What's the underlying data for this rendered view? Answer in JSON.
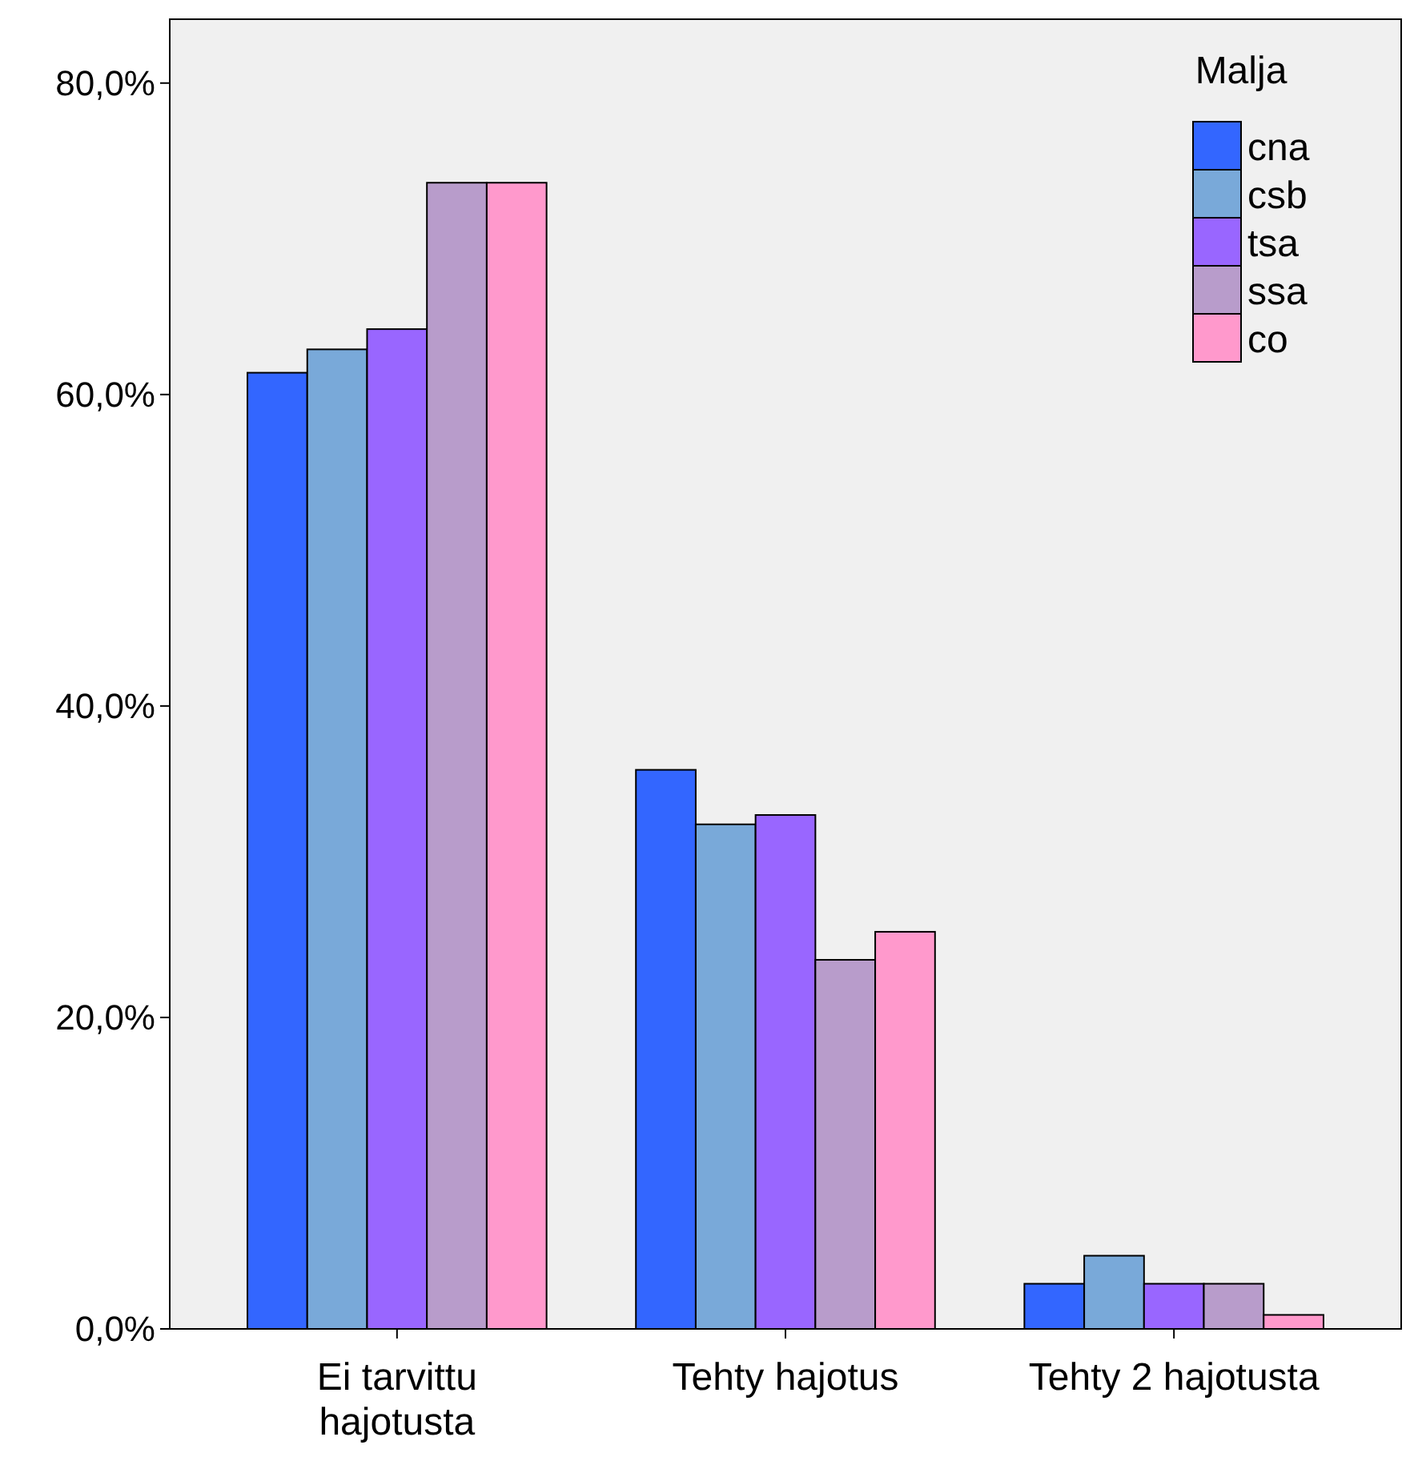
{
  "chart_data": {
    "type": "bar",
    "categories": [
      "Ei tarvittu hajotusta",
      "Tehty hajotus",
      "Tehty 2 hajotusta"
    ],
    "series": [
      {
        "name": "cna",
        "color": "#3366ff",
        "values": [
          61.4,
          35.9,
          2.9
        ]
      },
      {
        "name": "csb",
        "color": "#79a9d9",
        "values": [
          62.9,
          32.4,
          4.7
        ]
      },
      {
        "name": "tsa",
        "color": "#9966ff",
        "values": [
          64.2,
          33.0,
          2.9
        ]
      },
      {
        "name": "ssa",
        "color": "#b89ccb",
        "values": [
          73.6,
          23.7,
          2.9
        ]
      },
      {
        "name": "co",
        "color": "#ff99cc",
        "values": [
          73.6,
          25.5,
          0.9
        ]
      }
    ],
    "ylim": [
      0,
      84.1
    ],
    "yticks": [
      {
        "value": 0,
        "label": "0,0%"
      },
      {
        "value": 20,
        "label": "20,0%"
      },
      {
        "value": 40,
        "label": "40,0%"
      },
      {
        "value": 60,
        "label": "60,0%"
      },
      {
        "value": 80,
        "label": "80,0%"
      }
    ],
    "legend": "top right",
    "legend_title": "Malja",
    "grid": false
  }
}
